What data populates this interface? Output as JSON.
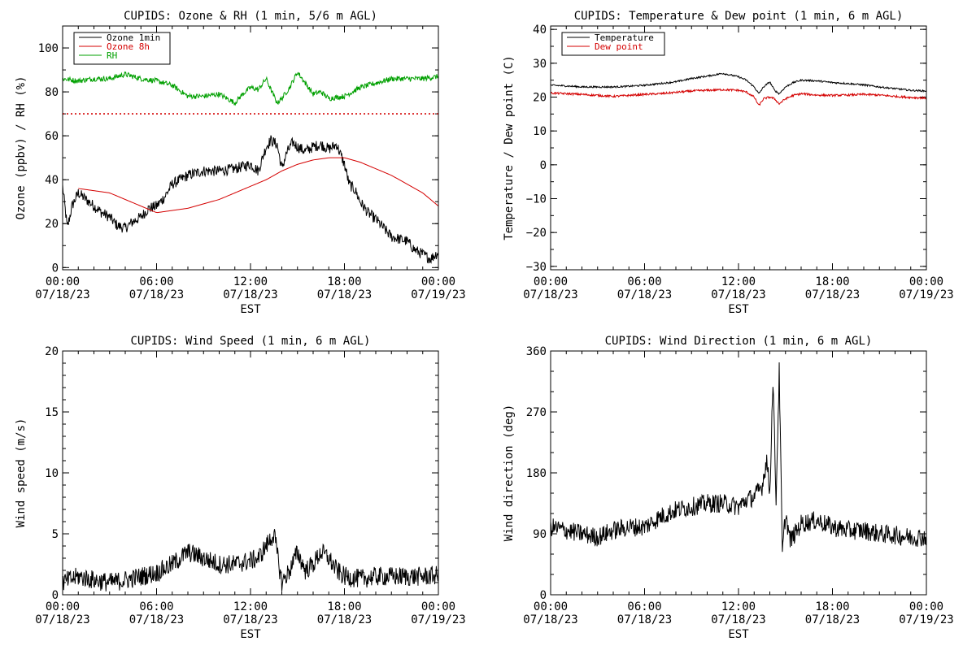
{
  "chart_data": [
    {
      "type": "line",
      "title": "CUPIDS: Ozone & RH (1 min, 5/6 m AGL)",
      "xlabel": "EST",
      "ylabel": "Ozone (ppbv) / RH (%)",
      "xlim": [
        0,
        24
      ],
      "ylim": [
        -1,
        110
      ],
      "yticks": [
        "0",
        "20",
        "40",
        "60",
        "80",
        "100"
      ],
      "ytick_values": [
        0,
        20,
        40,
        60,
        80,
        100
      ],
      "xticks": [
        {
          "time": "00:00",
          "date": "07/18/23"
        },
        {
          "time": "06:00",
          "date": "07/18/23"
        },
        {
          "time": "12:00",
          "date": "07/18/23"
        },
        {
          "time": "18:00",
          "date": "07/18/23"
        },
        {
          "time": "00:00",
          "date": "07/19/23"
        }
      ],
      "legend": {
        "placement": "top-left",
        "entries": [
          {
            "label": "Ozone 1min",
            "color": "#000000"
          },
          {
            "label": "Ozone 8h",
            "color": "#d40000"
          },
          {
            "label": "RH",
            "color": "#00a000"
          }
        ]
      },
      "reference_line": {
        "y": 70,
        "color": "#d40000",
        "style": "dotted"
      },
      "series": [
        {
          "name": "Ozone 1min",
          "color": "#000000",
          "noise": 2.5,
          "x": [
            0,
            0.3,
            0.6,
            1,
            1.5,
            2,
            2.5,
            3,
            3.5,
            4,
            4.5,
            5,
            5.5,
            6,
            6.5,
            7,
            8,
            9,
            10,
            11,
            11.5,
            12,
            12.5,
            13,
            13.3,
            13.7,
            14,
            14.3,
            14.7,
            15,
            15.5,
            16,
            16.5,
            17,
            17.5,
            18,
            18.3,
            18.7,
            19,
            19.5,
            20,
            20.5,
            21,
            21.5,
            22,
            22.5,
            23,
            23.5,
            24
          ],
          "y": [
            37,
            18,
            28,
            34,
            31,
            28,
            25,
            23,
            19,
            18,
            21,
            23,
            27,
            28,
            32,
            38,
            42,
            44,
            44,
            45,
            46,
            47,
            44,
            55,
            58,
            56,
            45,
            52,
            57,
            55,
            53,
            55,
            56,
            54,
            56,
            47,
            38,
            35,
            30,
            25,
            22,
            18,
            14,
            13,
            12,
            8,
            6,
            4,
            7
          ]
        },
        {
          "name": "Ozone 8h",
          "color": "#d40000",
          "noise": 0,
          "x": [
            1,
            2,
            3,
            4,
            5,
            6,
            7,
            8,
            9,
            10,
            11,
            12,
            13,
            14,
            15,
            16,
            17,
            18,
            19,
            20,
            21,
            22,
            23,
            24
          ],
          "y": [
            36,
            35,
            34,
            31,
            28,
            25,
            26,
            27,
            29,
            31,
            34,
            37,
            40,
            44,
            47,
            49,
            50,
            50,
            48,
            45,
            42,
            38,
            34,
            28
          ]
        },
        {
          "name": "RH",
          "color": "#00a000",
          "noise": 1.2,
          "x": [
            0,
            1,
            2,
            3,
            4,
            5,
            6,
            7,
            8,
            9,
            10,
            10.5,
            11,
            11.5,
            12,
            12.5,
            13,
            13.3,
            13.7,
            14,
            14.5,
            15,
            15.5,
            16,
            16.5,
            17,
            18,
            19,
            20,
            21,
            22,
            23,
            24
          ],
          "y": [
            86,
            85,
            86,
            86,
            88,
            86,
            85,
            83,
            78,
            78,
            79,
            77,
            75,
            79,
            82,
            81,
            86,
            81,
            75,
            77,
            82,
            89,
            84,
            79,
            80,
            77,
            78,
            82,
            84,
            86,
            86,
            86,
            87
          ]
        }
      ]
    },
    {
      "type": "line",
      "title": "CUPIDS: Temperature & Dew point (1 min, 6 m AGL)",
      "xlabel": "EST",
      "ylabel": "Temperature / Dew point (C)",
      "xlim": [
        0,
        24
      ],
      "ylim": [
        -31,
        41
      ],
      "yticks": [
        "−30",
        "−20",
        "−10",
        "0",
        "10",
        "20",
        "30",
        "40"
      ],
      "ytick_values": [
        -30,
        -20,
        -10,
        0,
        10,
        20,
        30,
        40
      ],
      "xticks": [
        {
          "time": "00:00",
          "date": "07/18/23"
        },
        {
          "time": "06:00",
          "date": "07/18/23"
        },
        {
          "time": "12:00",
          "date": "07/18/23"
        },
        {
          "time": "18:00",
          "date": "07/18/23"
        },
        {
          "time": "00:00",
          "date": "07/19/23"
        }
      ],
      "legend": {
        "placement": "top-left",
        "entries": [
          {
            "label": "Temperature",
            "color": "#000000"
          },
          {
            "label": "Dew point",
            "color": "#d40000"
          }
        ]
      },
      "series": [
        {
          "name": "Temperature",
          "color": "#000000",
          "noise": 0.25,
          "x": [
            0,
            1,
            2,
            3,
            4,
            5,
            6,
            7,
            8,
            9,
            10,
            11,
            12,
            12.5,
            13,
            13.3,
            13.6,
            14,
            14.3,
            14.6,
            15,
            15.5,
            16,
            17,
            18,
            19,
            20,
            21,
            22,
            23,
            24
          ],
          "y": [
            23.5,
            23.3,
            23.0,
            23.0,
            23.0,
            23.2,
            23.5,
            24.0,
            24.5,
            25.5,
            26.2,
            27.0,
            26.0,
            25.0,
            23.0,
            21.0,
            23.0,
            24.5,
            22.0,
            21.0,
            23.0,
            24.3,
            25.0,
            24.8,
            24.3,
            24.0,
            23.6,
            23.0,
            22.5,
            22.0,
            21.8
          ]
        },
        {
          "name": "Dew point",
          "color": "#d40000",
          "noise": 0.3,
          "x": [
            0,
            1,
            2,
            3,
            4,
            5,
            6,
            7,
            8,
            9,
            10,
            11,
            12,
            12.5,
            13,
            13.3,
            13.6,
            14,
            14.3,
            14.6,
            15,
            15.5,
            16,
            17,
            18,
            19,
            20,
            21,
            22,
            23,
            24
          ],
          "y": [
            21.2,
            21.0,
            20.8,
            20.5,
            20.2,
            20.5,
            20.8,
            21.0,
            21.4,
            21.8,
            22.0,
            22.2,
            22.0,
            21.5,
            20.0,
            17.5,
            19.5,
            20.0,
            19.5,
            18.0,
            19.5,
            20.5,
            21.0,
            20.6,
            20.5,
            20.6,
            20.8,
            20.6,
            20.2,
            19.9,
            19.7
          ]
        }
      ]
    },
    {
      "type": "line",
      "title": "CUPIDS: Wind Speed (1 min, 6 m AGL)",
      "xlabel": "EST",
      "ylabel": "Wind speed (m/s)",
      "xlim": [
        0,
        24
      ],
      "ylim": [
        0,
        20
      ],
      "yticks": [
        "0",
        "5",
        "10",
        "15",
        "20"
      ],
      "ytick_values": [
        0,
        5,
        10,
        15,
        20
      ],
      "xticks": [
        {
          "time": "00:00",
          "date": "07/18/23"
        },
        {
          "time": "06:00",
          "date": "07/18/23"
        },
        {
          "time": "12:00",
          "date": "07/18/23"
        },
        {
          "time": "18:00",
          "date": "07/18/23"
        },
        {
          "time": "00:00",
          "date": "07/19/23"
        }
      ],
      "series": [
        {
          "name": "",
          "color": "#000000",
          "noise": 0.8,
          "x": [
            0,
            1,
            2,
            3,
            4,
            5,
            6,
            7,
            8,
            9,
            10,
            11,
            12,
            12.5,
            13,
            13.5,
            14,
            14.5,
            15,
            15.5,
            16,
            16.5,
            17,
            17.5,
            18,
            19,
            20,
            21,
            22,
            23,
            24
          ],
          "y": [
            1.0,
            1.5,
            1.2,
            1.0,
            1.2,
            1.5,
            1.8,
            2.5,
            3.5,
            3.0,
            2.5,
            2.5,
            2.8,
            3.0,
            4.0,
            5.0,
            1.0,
            2.0,
            3.5,
            2.0,
            2.5,
            3.5,
            3.0,
            2.0,
            1.5,
            1.3,
            1.5,
            1.5,
            1.5,
            1.5,
            1.6
          ]
        }
      ]
    },
    {
      "type": "line",
      "title": "CUPIDS: Wind Direction (1 min, 6 m AGL)",
      "xlabel": "EST",
      "ylabel": "Wind direction (deg)",
      "xlim": [
        0,
        24
      ],
      "ylim": [
        0,
        360
      ],
      "yticks": [
        "0",
        "90",
        "180",
        "270",
        "360"
      ],
      "ytick_values": [
        0,
        90,
        180,
        270,
        360
      ],
      "xticks": [
        {
          "time": "00:00",
          "date": "07/18/23"
        },
        {
          "time": "06:00",
          "date": "07/18/23"
        },
        {
          "time": "12:00",
          "date": "07/18/23"
        },
        {
          "time": "18:00",
          "date": "07/18/23"
        },
        {
          "time": "00:00",
          "date": "07/19/23"
        }
      ],
      "series": [
        {
          "name": "",
          "color": "#000000",
          "noise": 14,
          "x": [
            0,
            1,
            2,
            3,
            4,
            5,
            6,
            7,
            8,
            9,
            10,
            11,
            12,
            12.5,
            13,
            13.5,
            13.8,
            14,
            14.2,
            14.4,
            14.6,
            14.8,
            15,
            15.3,
            15.6,
            16,
            17,
            18,
            19,
            20,
            21,
            22,
            23,
            24
          ],
          "y": [
            100,
            95,
            90,
            85,
            95,
            100,
            100,
            115,
            125,
            130,
            135,
            135,
            130,
            140,
            145,
            160,
            200,
            150,
            320,
            140,
            330,
            60,
            120,
            80,
            90,
            105,
            110,
            100,
            95,
            95,
            90,
            88,
            85,
            85
          ]
        }
      ]
    }
  ]
}
